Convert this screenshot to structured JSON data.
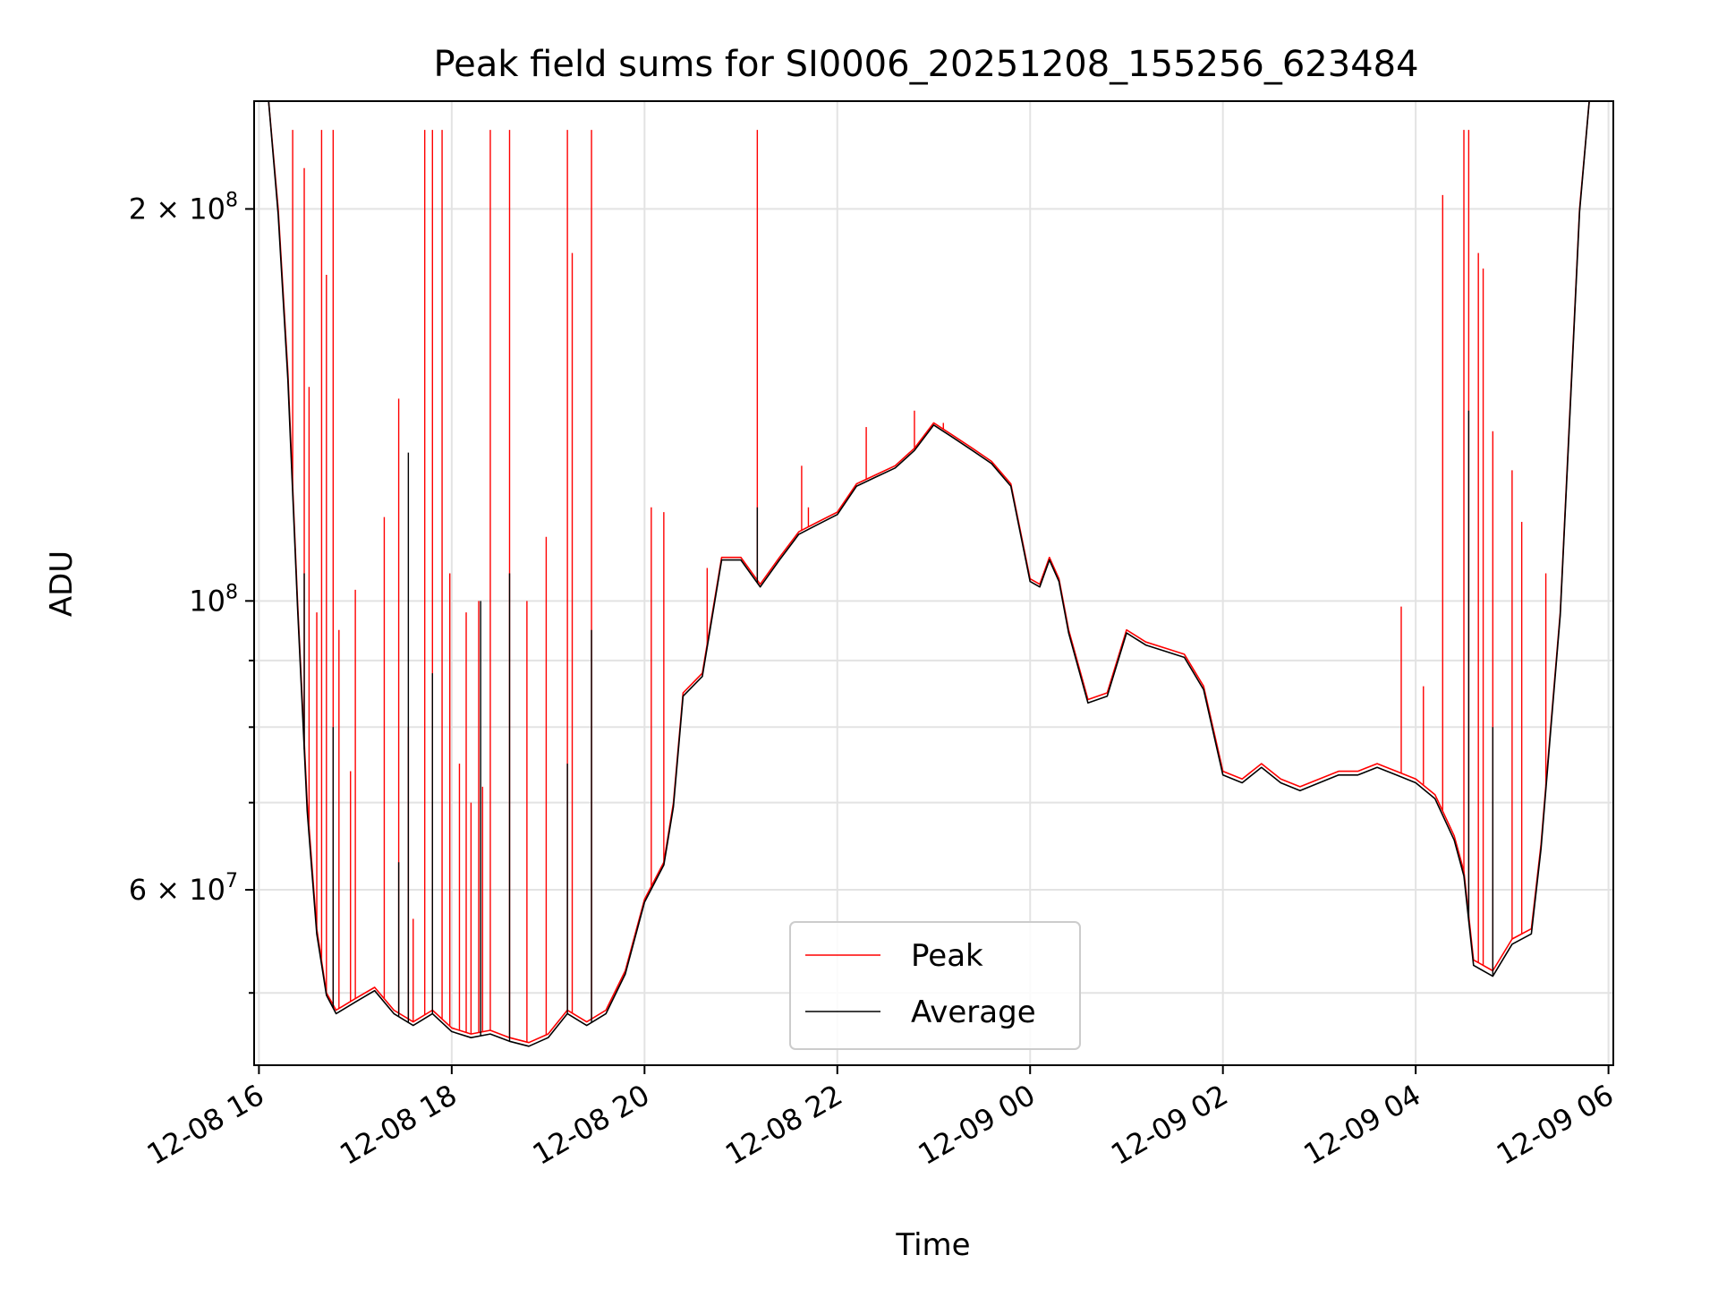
{
  "chart_data": {
    "type": "line",
    "title": "Peak field sums for SI0006_20251208_155256_623484",
    "xlabel": "Time",
    "ylabel": "ADU",
    "y_scale": "log",
    "ylim": [
      44000000,
      242000000
    ],
    "x_unit": "hours from 12-08 00:00",
    "xlim": [
      15.95,
      30.05
    ],
    "x_ticks": [
      {
        "value": 16,
        "label": "12-08 16"
      },
      {
        "value": 18,
        "label": "12-08 18"
      },
      {
        "value": 20,
        "label": "12-08 20"
      },
      {
        "value": 22,
        "label": "12-08 22"
      },
      {
        "value": 24,
        "label": "12-09 00"
      },
      {
        "value": 26,
        "label": "12-09 02"
      },
      {
        "value": 28,
        "label": "12-09 04"
      },
      {
        "value": 30,
        "label": "12-09 06"
      }
    ],
    "y_major_ticks": [
      {
        "value": 60000000,
        "mantissa": "6",
        "exp": "7"
      },
      {
        "value": 100000000,
        "mantissa": "",
        "exp": "8"
      },
      {
        "value": 200000000,
        "mantissa": "2",
        "exp": "8"
      }
    ],
    "y_minor_ticks": [
      50000000,
      70000000,
      80000000,
      90000000
    ],
    "grid": true,
    "legend_position": "lower-center",
    "series": [
      {
        "name": "Peak",
        "color": "#ff0000",
        "points": [
          [
            16.0,
            242000000
          ],
          [
            16.1,
            242000000
          ],
          [
            16.2,
            200000000
          ],
          [
            16.3,
            150000000
          ],
          [
            16.4,
            100000000
          ],
          [
            16.5,
            70000000
          ],
          [
            16.6,
            56000000
          ],
          [
            16.7,
            50000000
          ],
          [
            16.8,
            48500000
          ],
          [
            17.0,
            49500000
          ],
          [
            17.2,
            50500000
          ],
          [
            17.4,
            48500000
          ],
          [
            17.6,
            47500000
          ],
          [
            17.8,
            48500000
          ],
          [
            18.0,
            47000000
          ],
          [
            18.2,
            46500000
          ],
          [
            18.4,
            46800000
          ],
          [
            18.6,
            46200000
          ],
          [
            18.8,
            45800000
          ],
          [
            19.0,
            46500000
          ],
          [
            19.2,
            48500000
          ],
          [
            19.4,
            47500000
          ],
          [
            19.6,
            48500000
          ],
          [
            19.8,
            52000000
          ],
          [
            20.0,
            59000000
          ],
          [
            20.2,
            63000000
          ],
          [
            20.3,
            70000000
          ],
          [
            20.4,
            85000000
          ],
          [
            20.6,
            88000000
          ],
          [
            20.8,
            108000000
          ],
          [
            21.0,
            108000000
          ],
          [
            21.2,
            103000000
          ],
          [
            21.4,
            108000000
          ],
          [
            21.6,
            113000000
          ],
          [
            21.8,
            115000000
          ],
          [
            22.0,
            117000000
          ],
          [
            22.2,
            123000000
          ],
          [
            22.4,
            125000000
          ],
          [
            22.6,
            127000000
          ],
          [
            22.8,
            131000000
          ],
          [
            23.0,
            137000000
          ],
          [
            23.2,
            134000000
          ],
          [
            23.4,
            131000000
          ],
          [
            23.6,
            128000000
          ],
          [
            23.8,
            123000000
          ],
          [
            24.0,
            104000000
          ],
          [
            24.1,
            103000000
          ],
          [
            24.2,
            108000000
          ],
          [
            24.3,
            104000000
          ],
          [
            24.4,
            95000000
          ],
          [
            24.6,
            84000000
          ],
          [
            24.8,
            85000000
          ],
          [
            25.0,
            95000000
          ],
          [
            25.2,
            93000000
          ],
          [
            25.4,
            92000000
          ],
          [
            25.6,
            91000000
          ],
          [
            25.8,
            86000000
          ],
          [
            26.0,
            74000000
          ],
          [
            26.2,
            73000000
          ],
          [
            26.4,
            75000000
          ],
          [
            26.6,
            73000000
          ],
          [
            26.8,
            72000000
          ],
          [
            27.0,
            73000000
          ],
          [
            27.2,
            74000000
          ],
          [
            27.4,
            74000000
          ],
          [
            27.6,
            75000000
          ],
          [
            27.8,
            74000000
          ],
          [
            28.0,
            73000000
          ],
          [
            28.2,
            71000000
          ],
          [
            28.4,
            66000000
          ],
          [
            28.5,
            62000000
          ],
          [
            28.6,
            53000000
          ],
          [
            28.8,
            52000000
          ],
          [
            29.0,
            55000000
          ],
          [
            29.2,
            56000000
          ],
          [
            29.3,
            65000000
          ],
          [
            29.4,
            80000000
          ],
          [
            29.5,
            98000000
          ],
          [
            29.6,
            140000000
          ],
          [
            29.7,
            200000000
          ],
          [
            29.8,
            242000000
          ],
          [
            30.0,
            242000000
          ]
        ],
        "spikes": [
          [
            16.35,
            230000000
          ],
          [
            16.47,
            215000000
          ],
          [
            16.52,
            146000000
          ],
          [
            16.6,
            98000000
          ],
          [
            16.65,
            230000000
          ],
          [
            16.7,
            178000000
          ],
          [
            16.77,
            230000000
          ],
          [
            16.83,
            95000000
          ],
          [
            16.95,
            74000000
          ],
          [
            17.0,
            102000000
          ],
          [
            17.3,
            116000000
          ],
          [
            17.45,
            143000000
          ],
          [
            17.55,
            80000000
          ],
          [
            17.6,
            57000000
          ],
          [
            17.72,
            230000000
          ],
          [
            17.8,
            230000000
          ],
          [
            17.9,
            230000000
          ],
          [
            17.98,
            105000000
          ],
          [
            18.08,
            75000000
          ],
          [
            18.15,
            98000000
          ],
          [
            18.2,
            70000000
          ],
          [
            18.28,
            100000000
          ],
          [
            18.32,
            72000000
          ],
          [
            18.4,
            230000000
          ],
          [
            18.6,
            230000000
          ],
          [
            18.78,
            100000000
          ],
          [
            18.98,
            112000000
          ],
          [
            19.2,
            230000000
          ],
          [
            19.25,
            185000000
          ],
          [
            19.45,
            230000000
          ],
          [
            20.07,
            118000000
          ],
          [
            20.2,
            117000000
          ],
          [
            20.65,
            106000000
          ],
          [
            21.17,
            230000000
          ],
          [
            21.63,
            127000000
          ],
          [
            21.7,
            118000000
          ],
          [
            22.3,
            136000000
          ],
          [
            22.8,
            140000000
          ],
          [
            23.1,
            137000000
          ],
          [
            27.85,
            99000000
          ],
          [
            28.08,
            86000000
          ],
          [
            28.28,
            205000000
          ],
          [
            28.5,
            230000000
          ],
          [
            28.55,
            230000000
          ],
          [
            28.65,
            185000000
          ],
          [
            28.7,
            180000000
          ],
          [
            28.8,
            135000000
          ],
          [
            29.0,
            126000000
          ],
          [
            29.1,
            115000000
          ],
          [
            29.35,
            105000000
          ]
        ]
      },
      {
        "name": "Average",
        "color": "#000000",
        "points": [
          [
            16.0,
            242000000
          ],
          [
            16.1,
            242000000
          ],
          [
            16.2,
            198000000
          ],
          [
            16.3,
            148000000
          ],
          [
            16.4,
            99000000
          ],
          [
            16.5,
            69000000
          ],
          [
            16.6,
            55500000
          ],
          [
            16.7,
            49800000
          ],
          [
            16.8,
            48200000
          ],
          [
            17.0,
            49200000
          ],
          [
            17.2,
            50200000
          ],
          [
            17.4,
            48200000
          ],
          [
            17.6,
            47200000
          ],
          [
            17.8,
            48200000
          ],
          [
            18.0,
            46700000
          ],
          [
            18.2,
            46200000
          ],
          [
            18.4,
            46500000
          ],
          [
            18.6,
            45900000
          ],
          [
            18.8,
            45500000
          ],
          [
            19.0,
            46200000
          ],
          [
            19.2,
            48200000
          ],
          [
            19.4,
            47200000
          ],
          [
            19.6,
            48200000
          ],
          [
            19.8,
            51700000
          ],
          [
            20.0,
            58700000
          ],
          [
            20.2,
            62700000
          ],
          [
            20.3,
            69500000
          ],
          [
            20.4,
            84500000
          ],
          [
            20.6,
            87500000
          ],
          [
            20.8,
            107500000
          ],
          [
            21.0,
            107500000
          ],
          [
            21.2,
            102500000
          ],
          [
            21.4,
            107500000
          ],
          [
            21.6,
            112500000
          ],
          [
            21.8,
            114500000
          ],
          [
            22.0,
            116500000
          ],
          [
            22.2,
            122500000
          ],
          [
            22.4,
            124500000
          ],
          [
            22.6,
            126500000
          ],
          [
            22.8,
            130500000
          ],
          [
            23.0,
            136500000
          ],
          [
            23.2,
            133500000
          ],
          [
            23.4,
            130500000
          ],
          [
            23.6,
            127500000
          ],
          [
            23.8,
            122500000
          ],
          [
            24.0,
            103500000
          ],
          [
            24.1,
            102500000
          ],
          [
            24.2,
            107500000
          ],
          [
            24.3,
            103500000
          ],
          [
            24.4,
            94500000
          ],
          [
            24.6,
            83500000
          ],
          [
            24.8,
            84500000
          ],
          [
            25.0,
            94500000
          ],
          [
            25.2,
            92500000
          ],
          [
            25.4,
            91500000
          ],
          [
            25.6,
            90500000
          ],
          [
            25.8,
            85500000
          ],
          [
            26.0,
            73500000
          ],
          [
            26.2,
            72500000
          ],
          [
            26.4,
            74500000
          ],
          [
            26.6,
            72500000
          ],
          [
            26.8,
            71500000
          ],
          [
            27.0,
            72500000
          ],
          [
            27.2,
            73500000
          ],
          [
            27.4,
            73500000
          ],
          [
            27.6,
            74500000
          ],
          [
            27.8,
            73500000
          ],
          [
            28.0,
            72500000
          ],
          [
            28.2,
            70500000
          ],
          [
            28.4,
            65500000
          ],
          [
            28.5,
            61500000
          ],
          [
            28.6,
            52500000
          ],
          [
            28.8,
            51500000
          ],
          [
            29.0,
            54500000
          ],
          [
            29.2,
            55500000
          ],
          [
            29.3,
            64500000
          ],
          [
            29.4,
            79500000
          ],
          [
            29.5,
            97500000
          ],
          [
            29.6,
            139000000
          ],
          [
            29.7,
            199000000
          ],
          [
            29.8,
            242000000
          ],
          [
            30.0,
            242000000
          ]
        ],
        "spikes": [
          [
            16.47,
            105000000
          ],
          [
            16.77,
            80000000
          ],
          [
            17.45,
            63000000
          ],
          [
            17.55,
            130000000
          ],
          [
            17.8,
            88000000
          ],
          [
            18.3,
            100000000
          ],
          [
            18.6,
            105000000
          ],
          [
            19.2,
            75000000
          ],
          [
            19.45,
            95000000
          ],
          [
            21.17,
            118000000
          ],
          [
            28.55,
            140000000
          ],
          [
            28.8,
            80000000
          ]
        ]
      }
    ]
  }
}
